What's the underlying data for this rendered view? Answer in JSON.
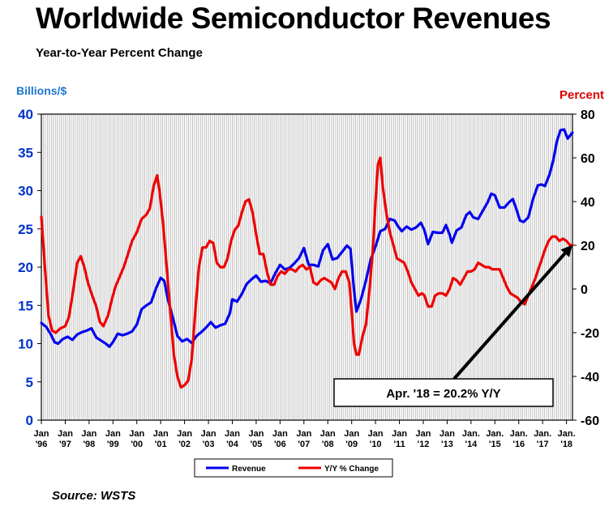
{
  "title": "Worldwide Semiconductor Revenues",
  "subtitle": "Year-to-Year Percent Change",
  "source": "Source: WSTS",
  "chart_data": {
    "type": "line",
    "y_left_label": "Billions/$",
    "y_right_label": "Percent",
    "y_left_lim": [
      0,
      40
    ],
    "y_left_ticks": [
      0,
      5,
      10,
      15,
      20,
      25,
      30,
      35,
      40
    ],
    "y_right_lim": [
      -60,
      80
    ],
    "y_right_ticks": [
      -60,
      -40,
      -20,
      0,
      20,
      40,
      60,
      80
    ],
    "x_range": [
      1996.0,
      2018.25
    ],
    "x_ticks": [
      {
        "top": "Jan",
        "bottom": "'96"
      },
      {
        "top": "Jan",
        "bottom": "'97"
      },
      {
        "top": "Jan",
        "bottom": "'98"
      },
      {
        "top": "Jan",
        "bottom": "'99"
      },
      {
        "top": "Jan",
        "bottom": "'00"
      },
      {
        "top": "Jan",
        "bottom": "'01"
      },
      {
        "top": "Jan",
        "bottom": "'02"
      },
      {
        "top": "Jan",
        "bottom": "'03"
      },
      {
        "top": "Jan",
        "bottom": "'04"
      },
      {
        "top": "Jan",
        "bottom": "'05"
      },
      {
        "top": "Jan",
        "bottom": "'06"
      },
      {
        "top": "Jan",
        "bottom": "'07"
      },
      {
        "top": "Jan",
        "bottom": "'08"
      },
      {
        "top": "Jan",
        "bottom": "'09"
      },
      {
        "top": "Jan",
        "bottom": "'10"
      },
      {
        "top": "Jan",
        "bottom": "'11"
      },
      {
        "top": "Jan",
        "bottom": "'12"
      },
      {
        "top": "Jan",
        "bottom": "'13"
      },
      {
        "top": "Jan.",
        "bottom": "'14"
      },
      {
        "top": "Jan.",
        "bottom": "'15"
      },
      {
        "top": "Jan.",
        "bottom": "'16"
      },
      {
        "top": "Jan.",
        "bottom": "'17"
      },
      {
        "top": "Jan.",
        "bottom": "'18"
      }
    ],
    "grid": "vertical monthly lines",
    "legend_position": "bottom-center",
    "series": [
      {
        "name": "Revenue",
        "axis": "left",
        "color": "#0000ee",
        "points": [
          [
            1996.0,
            12.7
          ],
          [
            1996.2,
            12.2
          ],
          [
            1996.4,
            11.2
          ],
          [
            1996.55,
            10.2
          ],
          [
            1996.7,
            10.0
          ],
          [
            1996.9,
            10.6
          ],
          [
            1997.1,
            10.9
          ],
          [
            1997.3,
            10.5
          ],
          [
            1997.5,
            11.2
          ],
          [
            1997.7,
            11.5
          ],
          [
            1997.9,
            11.7
          ],
          [
            1998.1,
            12.0
          ],
          [
            1998.3,
            10.8
          ],
          [
            1998.5,
            10.4
          ],
          [
            1998.7,
            10.0
          ],
          [
            1998.85,
            9.6
          ],
          [
            1999.0,
            10.2
          ],
          [
            1999.2,
            11.3
          ],
          [
            1999.4,
            11.1
          ],
          [
            1999.6,
            11.3
          ],
          [
            1999.8,
            11.6
          ],
          [
            2000.0,
            12.5
          ],
          [
            2000.2,
            14.5
          ],
          [
            2000.4,
            15.0
          ],
          [
            2000.6,
            15.4
          ],
          [
            2000.8,
            17.2
          ],
          [
            2001.0,
            18.6
          ],
          [
            2001.15,
            18.2
          ],
          [
            2001.3,
            15.8
          ],
          [
            2001.5,
            13.5
          ],
          [
            2001.7,
            11.0
          ],
          [
            2001.9,
            10.3
          ],
          [
            2002.1,
            10.6
          ],
          [
            2002.3,
            10.1
          ],
          [
            2002.5,
            11.0
          ],
          [
            2002.7,
            11.5
          ],
          [
            2002.9,
            12.1
          ],
          [
            2003.1,
            12.8
          ],
          [
            2003.3,
            12.1
          ],
          [
            2003.5,
            12.4
          ],
          [
            2003.7,
            12.6
          ],
          [
            2003.9,
            14.0
          ],
          [
            2004.0,
            15.8
          ],
          [
            2004.2,
            15.5
          ],
          [
            2004.4,
            16.5
          ],
          [
            2004.6,
            17.8
          ],
          [
            2004.8,
            18.4
          ],
          [
            2005.0,
            18.9
          ],
          [
            2005.2,
            18.1
          ],
          [
            2005.4,
            18.2
          ],
          [
            2005.6,
            17.9
          ],
          [
            2005.8,
            19.2
          ],
          [
            2006.0,
            20.3
          ],
          [
            2006.2,
            19.7
          ],
          [
            2006.4,
            19.9
          ],
          [
            2006.6,
            20.5
          ],
          [
            2006.8,
            21.2
          ],
          [
            2007.0,
            22.5
          ],
          [
            2007.2,
            20.3
          ],
          [
            2007.4,
            20.3
          ],
          [
            2007.6,
            20.1
          ],
          [
            2007.8,
            22.2
          ],
          [
            2008.0,
            23.0
          ],
          [
            2008.2,
            21.0
          ],
          [
            2008.4,
            21.2
          ],
          [
            2008.6,
            22.0
          ],
          [
            2008.8,
            22.8
          ],
          [
            2008.95,
            22.4
          ],
          [
            2009.1,
            17.0
          ],
          [
            2009.2,
            14.2
          ],
          [
            2009.4,
            15.9
          ],
          [
            2009.6,
            18.3
          ],
          [
            2009.8,
            21.0
          ],
          [
            2010.0,
            22.7
          ],
          [
            2010.2,
            24.7
          ],
          [
            2010.4,
            25.0
          ],
          [
            2010.6,
            26.3
          ],
          [
            2010.8,
            26.1
          ],
          [
            2010.95,
            25.3
          ],
          [
            2011.1,
            24.7
          ],
          [
            2011.3,
            25.3
          ],
          [
            2011.5,
            24.9
          ],
          [
            2011.7,
            25.2
          ],
          [
            2011.9,
            25.8
          ],
          [
            2012.05,
            24.8
          ],
          [
            2012.2,
            23.0
          ],
          [
            2012.4,
            24.6
          ],
          [
            2012.6,
            24.5
          ],
          [
            2012.8,
            24.5
          ],
          [
            2012.95,
            25.5
          ],
          [
            2013.1,
            24.3
          ],
          [
            2013.2,
            23.2
          ],
          [
            2013.4,
            24.8
          ],
          [
            2013.6,
            25.2
          ],
          [
            2013.8,
            26.8
          ],
          [
            2013.95,
            27.2
          ],
          [
            2014.1,
            26.5
          ],
          [
            2014.3,
            26.3
          ],
          [
            2014.5,
            27.4
          ],
          [
            2014.7,
            28.5
          ],
          [
            2014.85,
            29.6
          ],
          [
            2015.0,
            29.4
          ],
          [
            2015.2,
            27.8
          ],
          [
            2015.4,
            27.8
          ],
          [
            2015.6,
            28.5
          ],
          [
            2015.75,
            28.9
          ],
          [
            2015.9,
            27.6
          ],
          [
            2016.05,
            26.1
          ],
          [
            2016.2,
            25.9
          ],
          [
            2016.4,
            26.5
          ],
          [
            2016.6,
            28.9
          ],
          [
            2016.8,
            30.7
          ],
          [
            2016.95,
            30.8
          ],
          [
            2017.1,
            30.6
          ],
          [
            2017.3,
            32.2
          ],
          [
            2017.45,
            34.0
          ],
          [
            2017.6,
            36.5
          ],
          [
            2017.75,
            37.9
          ],
          [
            2017.9,
            38.0
          ],
          [
            2018.05,
            36.8
          ],
          [
            2018.25,
            37.6
          ]
        ]
      },
      {
        "name": "Y/Y % Change",
        "axis": "right",
        "color": "#ee0000",
        "points": [
          [
            1996.0,
            33
          ],
          [
            1996.15,
            10
          ],
          [
            1996.3,
            -12
          ],
          [
            1996.45,
            -19
          ],
          [
            1996.6,
            -20
          ],
          [
            1996.8,
            -18
          ],
          [
            1997.0,
            -17
          ],
          [
            1997.15,
            -13
          ],
          [
            1997.3,
            -3
          ],
          [
            1997.5,
            12
          ],
          [
            1997.65,
            15
          ],
          [
            1997.8,
            10
          ],
          [
            1997.95,
            3
          ],
          [
            1998.1,
            -2
          ],
          [
            1998.3,
            -8
          ],
          [
            1998.45,
            -15
          ],
          [
            1998.6,
            -17
          ],
          [
            1998.8,
            -12
          ],
          [
            1998.95,
            -5
          ],
          [
            1999.1,
            1
          ],
          [
            1999.3,
            6
          ],
          [
            1999.45,
            10
          ],
          [
            1999.6,
            15
          ],
          [
            1999.8,
            22
          ],
          [
            2000.0,
            26
          ],
          [
            2000.2,
            32
          ],
          [
            2000.4,
            34
          ],
          [
            2000.55,
            37
          ],
          [
            2000.7,
            47
          ],
          [
            2000.85,
            52
          ],
          [
            2000.95,
            45
          ],
          [
            2001.1,
            30
          ],
          [
            2001.25,
            10
          ],
          [
            2001.4,
            -10
          ],
          [
            2001.55,
            -30
          ],
          [
            2001.7,
            -40
          ],
          [
            2001.85,
            -45
          ],
          [
            2002.0,
            -44
          ],
          [
            2002.15,
            -42
          ],
          [
            2002.3,
            -32
          ],
          [
            2002.45,
            -10
          ],
          [
            2002.6,
            10
          ],
          [
            2002.75,
            19
          ],
          [
            2002.9,
            19
          ],
          [
            2003.05,
            22
          ],
          [
            2003.2,
            21
          ],
          [
            2003.35,
            12
          ],
          [
            2003.5,
            10
          ],
          [
            2003.65,
            10
          ],
          [
            2003.8,
            14
          ],
          [
            2003.95,
            22
          ],
          [
            2004.1,
            27
          ],
          [
            2004.25,
            29
          ],
          [
            2004.4,
            35
          ],
          [
            2004.55,
            40
          ],
          [
            2004.7,
            41
          ],
          [
            2004.85,
            35
          ],
          [
            2005.0,
            25
          ],
          [
            2005.15,
            16
          ],
          [
            2005.3,
            16
          ],
          [
            2005.45,
            8
          ],
          [
            2005.6,
            2
          ],
          [
            2005.75,
            2
          ],
          [
            2005.9,
            6
          ],
          [
            2006.05,
            8
          ],
          [
            2006.2,
            7
          ],
          [
            2006.35,
            9
          ],
          [
            2006.5,
            9
          ],
          [
            2006.65,
            8
          ],
          [
            2006.8,
            10
          ],
          [
            2006.95,
            11
          ],
          [
            2007.1,
            9
          ],
          [
            2007.25,
            10
          ],
          [
            2007.4,
            3
          ],
          [
            2007.55,
            2
          ],
          [
            2007.7,
            4
          ],
          [
            2007.85,
            5
          ],
          [
            2008.0,
            4
          ],
          [
            2008.15,
            3
          ],
          [
            2008.3,
            0
          ],
          [
            2008.45,
            5
          ],
          [
            2008.6,
            8
          ],
          [
            2008.75,
            8
          ],
          [
            2008.9,
            3
          ],
          [
            2009.0,
            -10
          ],
          [
            2009.1,
            -25
          ],
          [
            2009.2,
            -30
          ],
          [
            2009.3,
            -30
          ],
          [
            2009.45,
            -22
          ],
          [
            2009.6,
            -16
          ],
          [
            2009.75,
            0
          ],
          [
            2009.9,
            20
          ],
          [
            2010.0,
            40
          ],
          [
            2010.1,
            57
          ],
          [
            2010.2,
            60
          ],
          [
            2010.3,
            47
          ],
          [
            2010.45,
            35
          ],
          [
            2010.6,
            26
          ],
          [
            2010.75,
            20
          ],
          [
            2010.9,
            14
          ],
          [
            2011.05,
            13
          ],
          [
            2011.2,
            12
          ],
          [
            2011.35,
            8
          ],
          [
            2011.5,
            3
          ],
          [
            2011.65,
            0
          ],
          [
            2011.8,
            -3
          ],
          [
            2011.95,
            -2
          ],
          [
            2012.05,
            -3
          ],
          [
            2012.2,
            -8
          ],
          [
            2012.35,
            -8
          ],
          [
            2012.5,
            -3
          ],
          [
            2012.65,
            -2
          ],
          [
            2012.8,
            -2
          ],
          [
            2012.95,
            -3
          ],
          [
            2013.1,
            0
          ],
          [
            2013.25,
            5
          ],
          [
            2013.4,
            4
          ],
          [
            2013.55,
            2
          ],
          [
            2013.7,
            5
          ],
          [
            2013.85,
            8
          ],
          [
            2014.0,
            8
          ],
          [
            2014.15,
            9
          ],
          [
            2014.3,
            12
          ],
          [
            2014.45,
            11
          ],
          [
            2014.6,
            10
          ],
          [
            2014.75,
            10
          ],
          [
            2014.9,
            9
          ],
          [
            2015.05,
            9
          ],
          [
            2015.2,
            9
          ],
          [
            2015.35,
            5
          ],
          [
            2015.5,
            1
          ],
          [
            2015.65,
            -2
          ],
          [
            2015.8,
            -3
          ],
          [
            2015.95,
            -4
          ],
          [
            2016.1,
            -6
          ],
          [
            2016.25,
            -7
          ],
          [
            2016.4,
            -3
          ],
          [
            2016.55,
            1
          ],
          [
            2016.7,
            5
          ],
          [
            2016.85,
            10
          ],
          [
            2016.95,
            13
          ],
          [
            2017.1,
            18
          ],
          [
            2017.25,
            22
          ],
          [
            2017.4,
            24
          ],
          [
            2017.55,
            24
          ],
          [
            2017.7,
            22
          ],
          [
            2017.85,
            23
          ],
          [
            2018.0,
            22
          ],
          [
            2018.15,
            20
          ],
          [
            2018.25,
            20.2
          ]
        ]
      }
    ],
    "legend": [
      {
        "label": "Revenue",
        "color": "#0000ee"
      },
      {
        "label": "Y/Y % Change",
        "color": "#ee0000"
      }
    ],
    "annotation": {
      "text": "Apr. '18 = 20.2% Y/Y",
      "x": 2018.25,
      "y_right": 20.2
    }
  }
}
